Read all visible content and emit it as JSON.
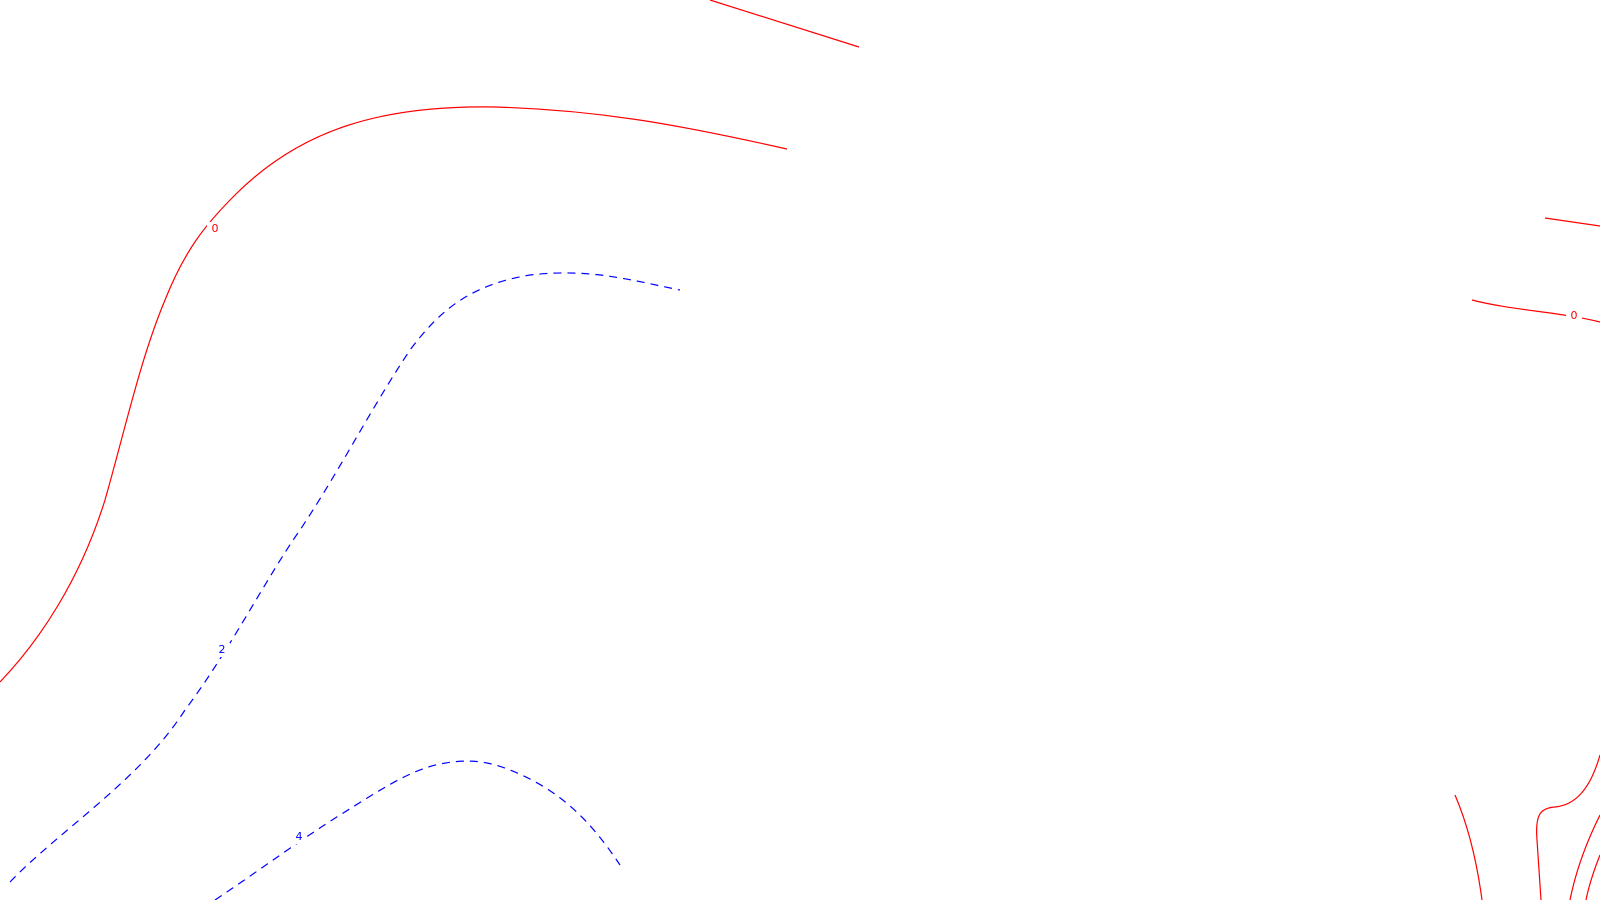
{
  "map": {
    "styles": {
      "zero_contour_color": "#ff0000",
      "positive_contour_color": "#0000ff",
      "positive_contour_line": "dashed"
    },
    "labels": {
      "zero_left": "0",
      "zero_right": "0",
      "two": "2",
      "four": "4"
    }
  }
}
